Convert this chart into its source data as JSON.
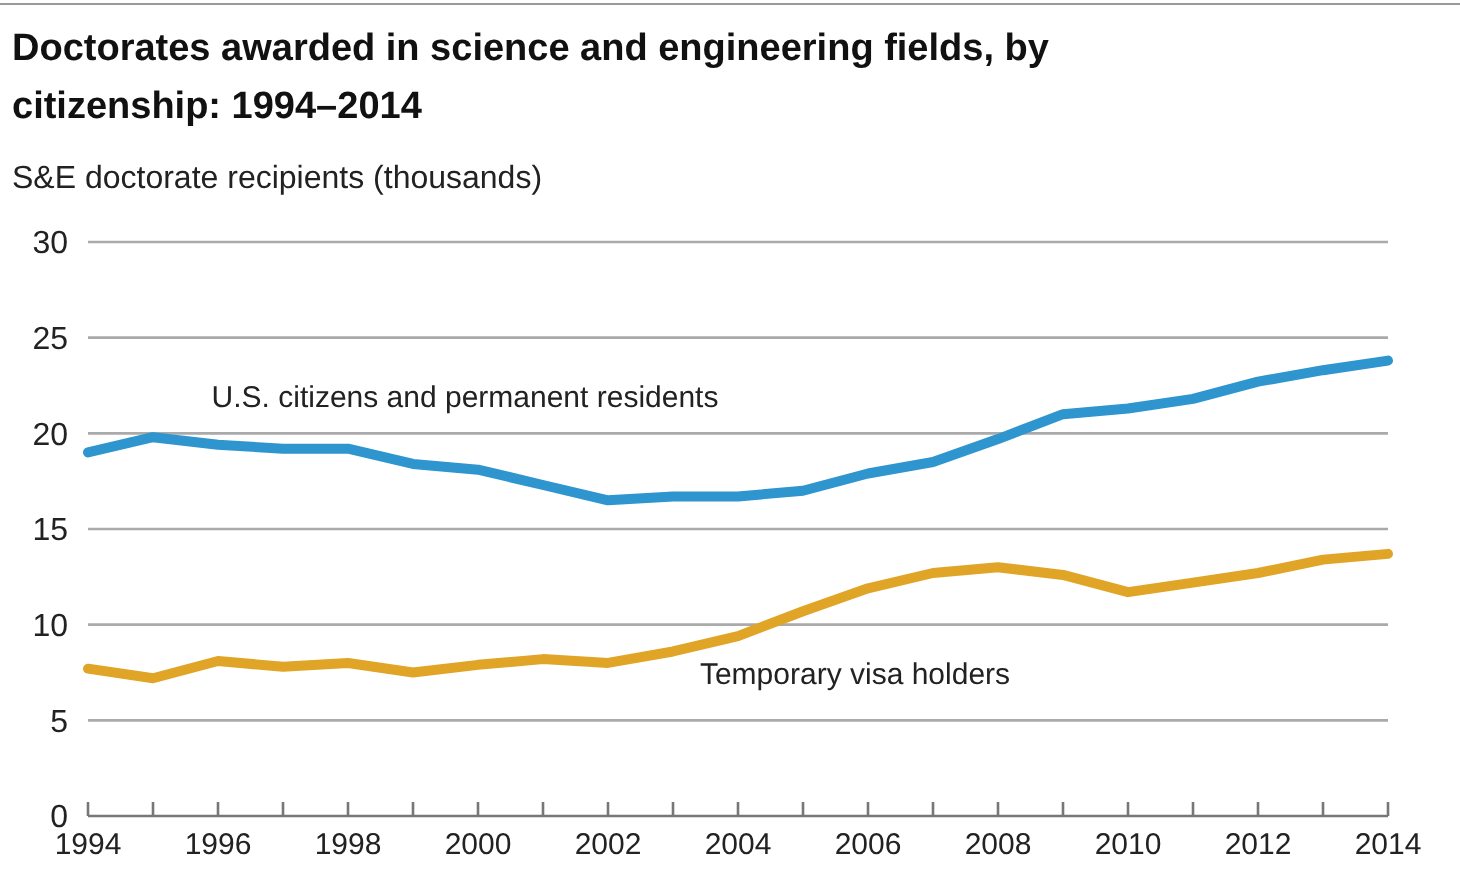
{
  "chart_data": {
    "type": "line",
    "title": "Doctorates awarded in science and engineering fields, by citizenship: 1994–2014",
    "ylabel": "S&E doctorate recipients (thousands)",
    "x": [
      1994,
      1995,
      1996,
      1997,
      1998,
      1999,
      2000,
      2001,
      2002,
      2003,
      2004,
      2005,
      2006,
      2007,
      2008,
      2009,
      2010,
      2011,
      2012,
      2013,
      2014
    ],
    "series": [
      {
        "name": "U.S. citizens and permanent residents",
        "color": "#2e95cf",
        "values": [
          19.0,
          19.8,
          19.4,
          19.2,
          19.2,
          18.4,
          18.1,
          17.3,
          16.5,
          16.7,
          16.7,
          17.0,
          17.9,
          18.5,
          19.7,
          21.0,
          21.3,
          21.8,
          22.7,
          23.3,
          23.8
        ]
      },
      {
        "name": "Temporary visa holders",
        "color": "#e0a526",
        "values": [
          7.7,
          7.2,
          8.1,
          7.8,
          8.0,
          7.5,
          7.9,
          8.2,
          8.0,
          8.6,
          9.4,
          10.7,
          11.9,
          12.7,
          13.0,
          12.6,
          11.7,
          12.2,
          12.7,
          13.4,
          13.7
        ]
      }
    ],
    "xlim": [
      1994,
      2014
    ],
    "xticks": [
      1994,
      1996,
      1998,
      2000,
      2002,
      2004,
      2006,
      2008,
      2010,
      2012,
      2014
    ],
    "ylim": [
      0,
      30
    ],
    "yticks": [
      0,
      5,
      10,
      15,
      20,
      25,
      30
    ],
    "grid": "y",
    "line_style": "solid"
  }
}
